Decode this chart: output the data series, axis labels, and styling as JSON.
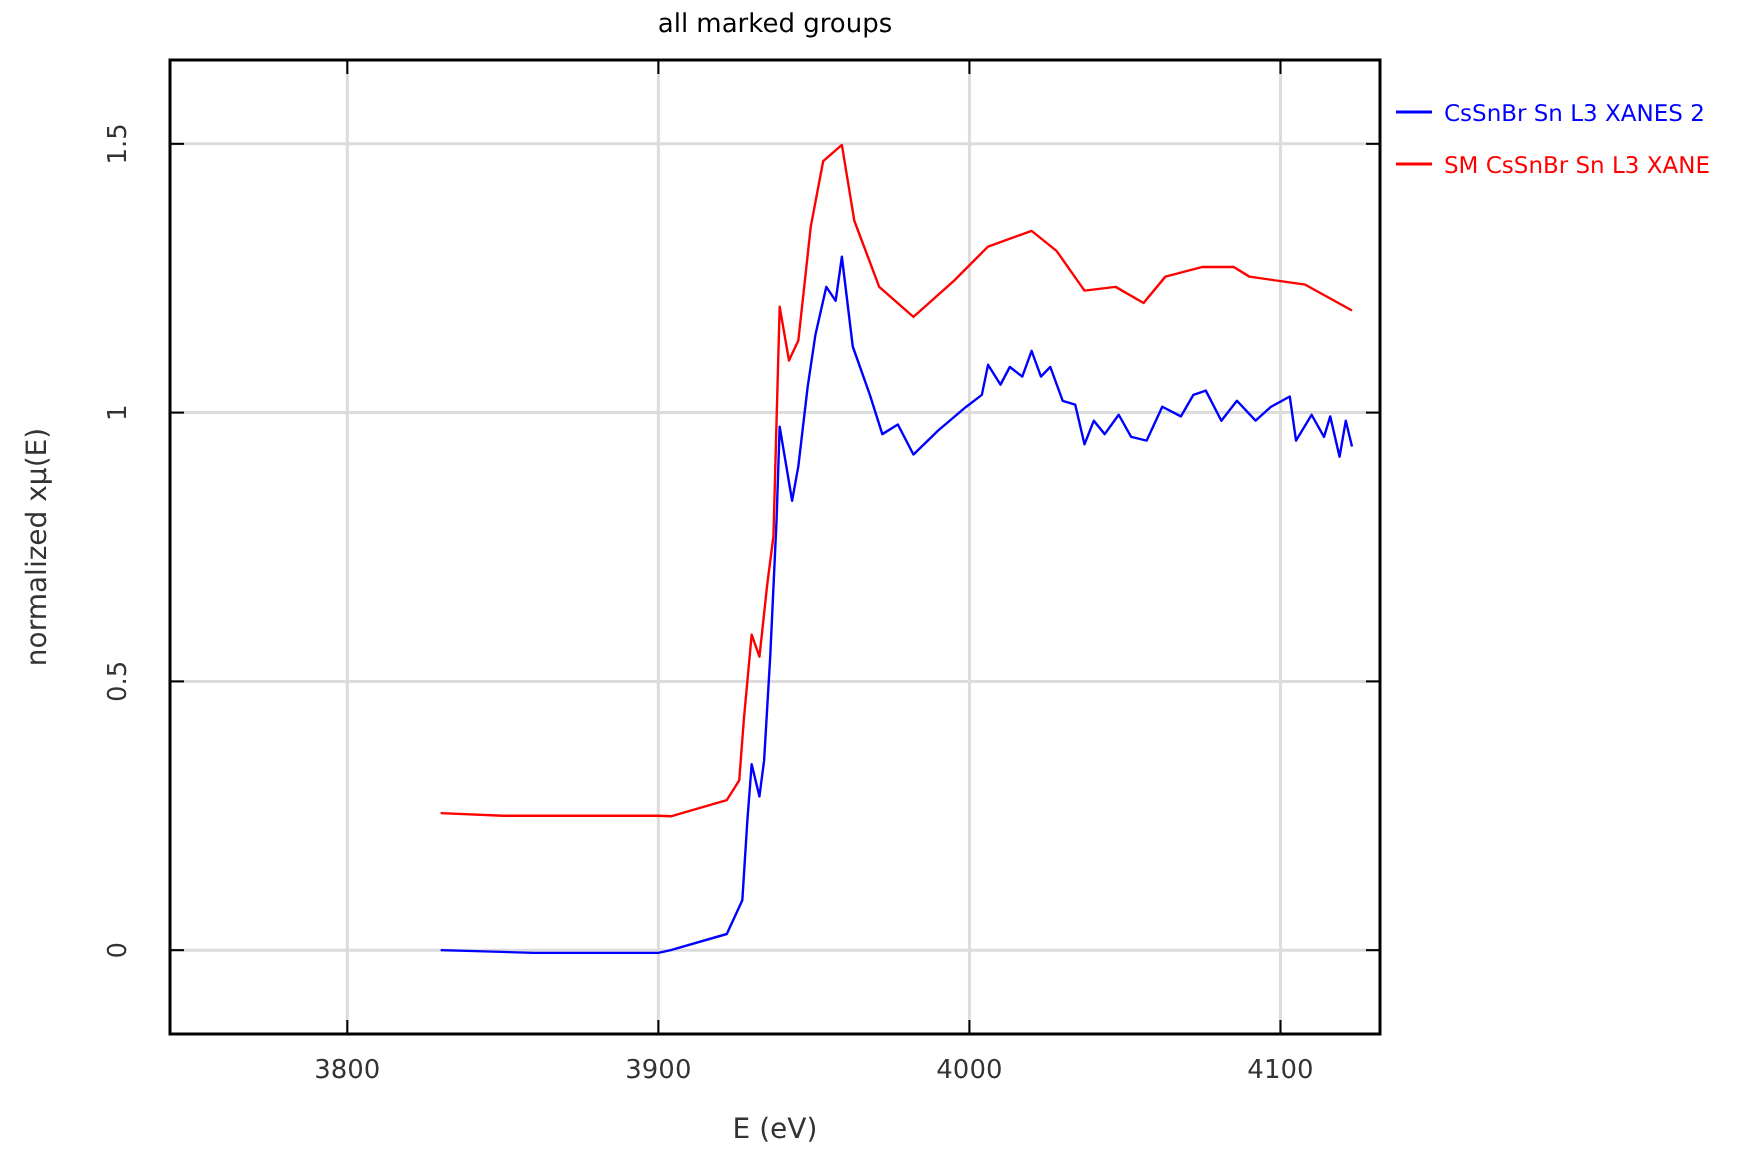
{
  "chart_data": {
    "type": "line",
    "title": "all marked groups",
    "xlabel": "E (eV)",
    "ylabel": "normalized xμ(E)",
    "xlim": [
      3743,
      4132
    ],
    "ylim": [
      -0.156,
      1.656
    ],
    "xticks": [
      3800,
      3900,
      4000,
      4100
    ],
    "yticks": [
      0,
      0.5,
      1,
      1.5
    ],
    "grid": true,
    "legend": "right",
    "line_style": "solid",
    "marker": "none",
    "series": [
      {
        "name": "CsSnBr Sn L3 XANES 2",
        "color": "#0000ff",
        "x": [
          3830,
          3860,
          3900,
          3904,
          3922,
          3927,
          3928.6,
          3930,
          3932.5,
          3934,
          3936,
          3938,
          3939,
          3943,
          3945,
          3948,
          3950.5,
          3954,
          3957,
          3959,
          3962.5,
          3968,
          3972,
          3977,
          3982,
          3990,
          3999,
          4004,
          4006,
          4010,
          4013,
          4017,
          4020,
          4023,
          4026,
          4030,
          4034,
          4037,
          4040,
          4043.5,
          4048,
          4052,
          4057,
          4062,
          4068,
          4072,
          4076,
          4081,
          4086,
          4092,
          4097,
          4103,
          4105,
          4110,
          4114,
          4116,
          4119,
          4121,
          4123
        ],
        "values": [
          0,
          -0.005,
          -0.005,
          0,
          0.03,
          0.093,
          0.24,
          0.346,
          0.286,
          0.353,
          0.55,
          0.8,
          0.974,
          0.836,
          0.9,
          1.048,
          1.145,
          1.234,
          1.208,
          1.29,
          1.123,
          1.033,
          0.96,
          0.978,
          0.922,
          0.967,
          1.011,
          1.033,
          1.089,
          1.052,
          1.085,
          1.067,
          1.115,
          1.067,
          1.085,
          1.022,
          1.015,
          0.941,
          0.985,
          0.96,
          0.996,
          0.955,
          0.948,
          1.011,
          0.993,
          1.033,
          1.041,
          0.985,
          1.022,
          0.985,
          1.011,
          1.03,
          0.948,
          0.996,
          0.955,
          0.993,
          0.918,
          0.985,
          0.937
        ]
      },
      {
        "name": "SM CsSnBr Sn L3 XANE",
        "color": "#ff0000",
        "x": [
          3830,
          3850,
          3900,
          3904,
          3922,
          3926,
          3927.5,
          3930,
          3932.5,
          3935,
          3937,
          3938,
          3939,
          3942,
          3945,
          3949,
          3953,
          3959,
          3963,
          3971,
          3982,
          3995,
          4006,
          4020,
          4028,
          4037,
          4047,
          4056,
          4063,
          4075,
          4085,
          4090,
          4108,
          4123
        ],
        "values": [
          0.255,
          0.25,
          0.25,
          0.249,
          0.279,
          0.316,
          0.43,
          0.587,
          0.546,
          0.68,
          0.77,
          0.985,
          1.197,
          1.097,
          1.134,
          1.346,
          1.468,
          1.498,
          1.357,
          1.234,
          1.178,
          1.245,
          1.309,
          1.338,
          1.301,
          1.227,
          1.234,
          1.204,
          1.253,
          1.271,
          1.271,
          1.253,
          1.238,
          1.19
        ]
      }
    ]
  }
}
